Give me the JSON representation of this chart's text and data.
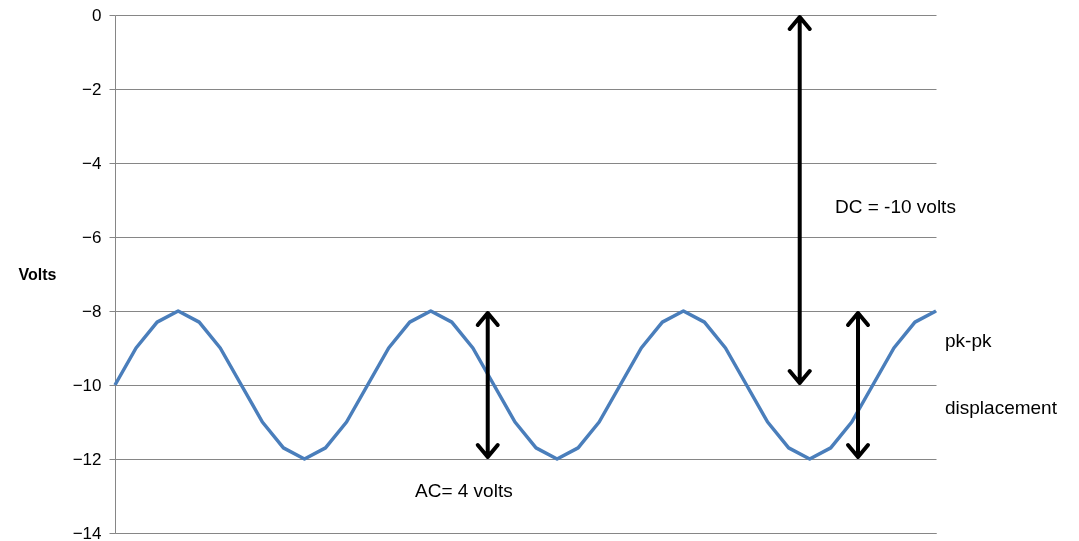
{
  "chart_data": {
    "type": "line",
    "ylabel": "Volts",
    "categories": [
      null,
      null,
      null,
      null,
      null,
      null,
      null,
      null,
      null,
      null,
      null,
      null,
      null,
      null,
      null,
      null,
      null,
      null,
      null,
      null,
      null,
      null,
      null,
      null,
      null,
      null,
      null,
      null,
      null,
      null,
      null,
      null,
      null,
      null,
      null,
      null,
      null,
      null,
      null,
      null
    ],
    "series": [
      {
        "color": "#4a7ebb",
        "values": [
          -10,
          -9,
          -8.3,
          -8,
          -8.3,
          -9,
          -10,
          -11,
          -11.7,
          -12,
          -11.7,
          -11,
          -10,
          -9,
          -8.3,
          -8,
          -8.3,
          -9,
          -10,
          -11,
          -11.7,
          -12,
          -11.7,
          -11,
          -10,
          -9,
          -8.3,
          -8,
          -8.3,
          -9,
          -10,
          -11,
          -11.7,
          -12,
          -11.7,
          -11,
          -10,
          -9,
          -8.3,
          -8
        ]
      }
    ],
    "ylim": [
      -14,
      0
    ],
    "yticks": [
      -14,
      -12,
      -10,
      -8,
      -6,
      -4,
      -2,
      0
    ],
    "grid": "y",
    "tick_labels": "y",
    "marker": "none",
    "line_style": "solid",
    "annotations": [
      "DC = -10 volts",
      "AC= 4 volts",
      "pk-pk",
      "displacement"
    ]
  }
}
